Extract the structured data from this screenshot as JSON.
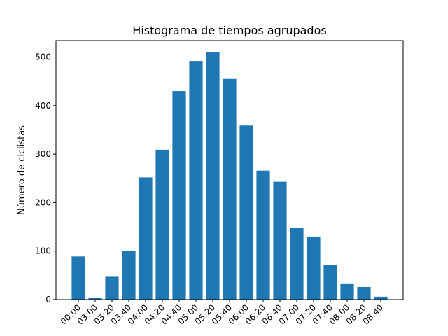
{
  "chart_data": {
    "type": "bar",
    "title": "Histograma de tiempos agrupados",
    "xlabel": "",
    "ylabel": "Número de ciclistas",
    "categories": [
      "00:00",
      "03:00",
      "03:20",
      "03:40",
      "04:00",
      "04:20",
      "04:40",
      "05:00",
      "05:20",
      "05:40",
      "06:00",
      "06:20",
      "06:40",
      "07:00",
      "07:20",
      "07:40",
      "08:00",
      "08:20",
      "08:40"
    ],
    "values": [
      89,
      3,
      47,
      101,
      252,
      309,
      430,
      492,
      510,
      455,
      359,
      266,
      243,
      148,
      130,
      72,
      32,
      26,
      6
    ],
    "ylim": [
      0,
      534
    ],
    "yticks": [
      0,
      100,
      200,
      300,
      400,
      500
    ],
    "bar_color": "#1f77b4",
    "grid": false,
    "xtick_rotation_deg": 45
  }
}
